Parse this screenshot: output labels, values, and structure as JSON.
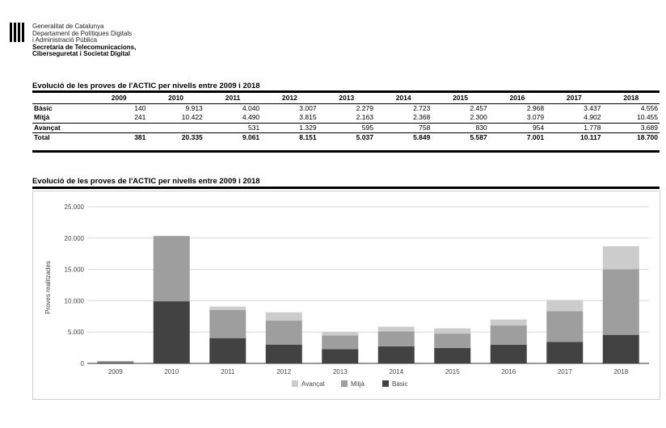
{
  "header": {
    "org_lines": [
      "Generalitat de Catalunya",
      "Departament de Polítiques Digitals",
      "i Administració Pública"
    ],
    "unit_lines": [
      "Secretaria de Telecomunicacions,",
      "Ciberseguretat i Societat Digital"
    ]
  },
  "table": {
    "title": "Evolució de les proves de l'ACTIC per nivells entre 2009 i 2018",
    "years": [
      "2009",
      "2010",
      "2011",
      "2012",
      "2013",
      "2014",
      "2015",
      "2016",
      "2017",
      "2018"
    ],
    "rows": [
      {
        "label": "Bàsic",
        "cells": [
          "140",
          "9.913",
          "4.040",
          "3.007",
          "2.279",
          "2.723",
          "2.457",
          "2.968",
          "3.437",
          "4.556"
        ]
      },
      {
        "label": "Mitjà",
        "cells": [
          "241",
          "10.422",
          "4.490",
          "3.815",
          "2.163",
          "2.368",
          "2.300",
          "3.079",
          "4.902",
          "10.455"
        ]
      },
      {
        "label": "Avançat",
        "cells": [
          "",
          "",
          "531",
          "1.329",
          "595",
          "758",
          "830",
          "954",
          "1.778",
          "3.689"
        ]
      },
      {
        "label": "Total",
        "cells": [
          "381",
          "20.335",
          "9.061",
          "8.151",
          "5.037",
          "5.849",
          "5.587",
          "7.001",
          "10.117",
          "18.700"
        ]
      }
    ]
  },
  "chart_data": {
    "type": "bar",
    "stacked": true,
    "title": "Evolució de les proves de l'ACTIC per nivells entre 2009 i 2018",
    "ylabel": "Proves realitzades",
    "xlabel": "",
    "ylim": [
      0,
      25000
    ],
    "yticks": [
      0,
      5000,
      10000,
      15000,
      20000,
      25000
    ],
    "ytick_labels": [
      "0",
      "5.000",
      "10.000",
      "15.000",
      "20.000",
      "25.000"
    ],
    "categories": [
      "2009",
      "2010",
      "2011",
      "2012",
      "2013",
      "2014",
      "2015",
      "2016",
      "2017",
      "2018"
    ],
    "series": [
      {
        "name": "Bàsic",
        "color": "#424242",
        "values": [
          140,
          9913,
          4040,
          3007,
          2279,
          2723,
          2457,
          2968,
          3437,
          4556
        ]
      },
      {
        "name": "Mitjà",
        "color": "#9e9e9e",
        "values": [
          241,
          10422,
          4490,
          3815,
          2163,
          2368,
          2300,
          3079,
          4902,
          10455
        ]
      },
      {
        "name": "Avançat",
        "color": "#cccccc",
        "values": [
          0,
          0,
          531,
          1329,
          595,
          758,
          830,
          954,
          1778,
          3689
        ]
      }
    ],
    "legend_order": [
      "Avançat",
      "Mitjà",
      "Bàsic"
    ],
    "legend_position": "bottom",
    "grid": true
  }
}
